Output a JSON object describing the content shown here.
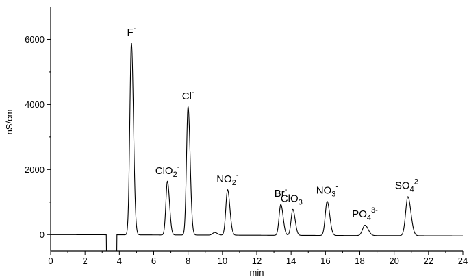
{
  "chart_data": {
    "type": "line",
    "title": "",
    "xlabel": "min",
    "ylabel": "nS/cm",
    "xlim": [
      0,
      24
    ],
    "ylim": [
      -500,
      7000
    ],
    "xticks": [
      0,
      2,
      4,
      6,
      8,
      10,
      12,
      14,
      16,
      18,
      20,
      22,
      24
    ],
    "yticks": [
      0,
      2000,
      4000,
      6000
    ],
    "grid": false,
    "baseline": 0,
    "dip": {
      "start": 3.25,
      "end": 3.85,
      "min": -500
    },
    "series": [
      {
        "peaks": [
          {
            "label": "F",
            "charge": "-",
            "time": 4.7,
            "height": 5900,
            "width": 0.09
          },
          {
            "label": "ClO2",
            "charge": "-",
            "time": 6.8,
            "height": 1650,
            "width": 0.09
          },
          {
            "label": "Cl",
            "charge": "-",
            "time": 8.0,
            "height": 3950,
            "width": 0.09
          },
          {
            "label": "NO2",
            "charge": "-",
            "time": 10.3,
            "height": 1400,
            "width": 0.1
          },
          {
            "label": "",
            "charge": "",
            "time": 9.55,
            "height": 80,
            "width": 0.12
          },
          {
            "label": "Br",
            "charge": "-",
            "time": 13.4,
            "height": 950,
            "width": 0.1
          },
          {
            "label": "ClO3",
            "charge": "-",
            "time": 14.1,
            "height": 800,
            "width": 0.1
          },
          {
            "label": "NO3",
            "charge": "-",
            "time": 16.1,
            "height": 1050,
            "width": 0.11
          },
          {
            "label": "PO4",
            "charge": "3-",
            "time": 18.3,
            "height": 320,
            "width": 0.14
          },
          {
            "label": "SO4",
            "charge": "2-",
            "time": 20.8,
            "height": 1200,
            "width": 0.13
          }
        ]
      }
    ]
  }
}
